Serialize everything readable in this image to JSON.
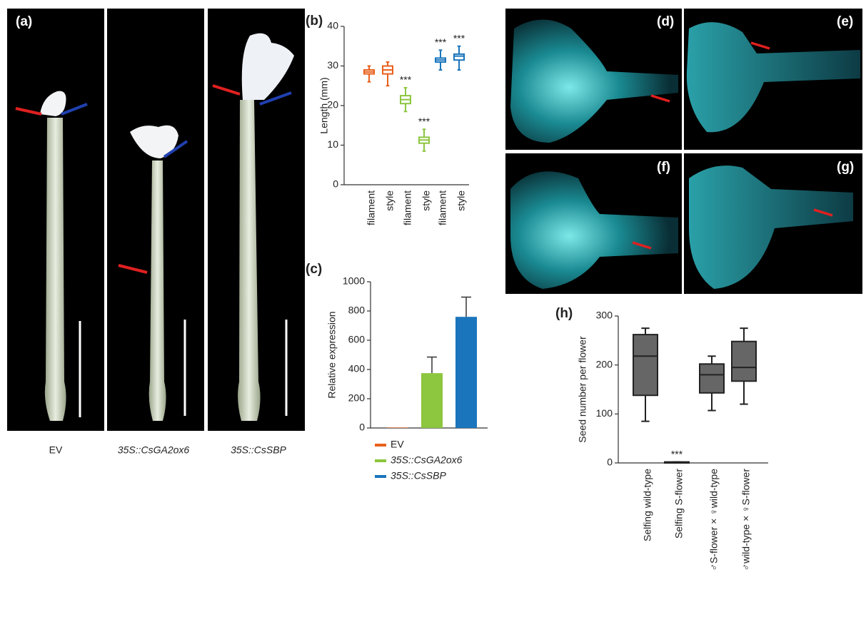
{
  "panel_labels": {
    "a": "(a)",
    "b": "(b)",
    "c": "(c)",
    "d": "(d)",
    "e": "(e)",
    "f": "(f)",
    "g": "(g)",
    "h": "(h)"
  },
  "photo_captions": [
    "EV",
    "35S::CsGA2ox6",
    "35S::CsSBP"
  ],
  "chart_data": [
    {
      "type": "box",
      "ylabel": "Length (mm)",
      "categories": [
        "filament",
        "style",
        "filament",
        "style",
        "filament",
        "style"
      ],
      "boxes": [
        {
          "min": 26,
          "q1": 28,
          "median": 28.5,
          "q3": 29,
          "max": 30,
          "color": "#e8601c"
        },
        {
          "min": 25,
          "q1": 28,
          "median": 29,
          "q3": 30,
          "max": 31,
          "color": "#e8601c"
        },
        {
          "min": 18.5,
          "q1": 20.5,
          "median": 21.5,
          "q3": 22.5,
          "max": 24.5,
          "color": "#8dc63f"
        },
        {
          "min": 8.5,
          "q1": 10.5,
          "median": 11.3,
          "q3": 12,
          "max": 14,
          "color": "#8dc63f"
        },
        {
          "min": 29,
          "q1": 31,
          "median": 31.5,
          "q3": 32,
          "max": 34,
          "color": "#1a75bc"
        },
        {
          "min": 29,
          "q1": 31.5,
          "median": 32.5,
          "q3": 33,
          "max": 35,
          "color": "#1a75bc"
        }
      ],
      "value_labels": [
        null,
        null,
        "***",
        "***",
        "***",
        "***"
      ],
      "ylim": [
        0,
        40
      ],
      "yticks": [
        0,
        10,
        20,
        30,
        40
      ]
    },
    {
      "type": "bar",
      "ylabel": "Relative expression",
      "categories": [
        "EV",
        "35S::CsGA2ox6",
        "35S::CsSBP"
      ],
      "values": [
        3,
        375,
        760
      ],
      "errors": [
        0,
        110,
        135
      ],
      "colors": [
        "#e8601c",
        "#8dc63f",
        "#1a75bc"
      ],
      "ylim": [
        0,
        1000
      ],
      "yticks": [
        0,
        200,
        400,
        600,
        800,
        1000
      ]
    },
    {
      "type": "box",
      "ylabel": "Seed number per flower",
      "categories": [
        "Selfing wild-type",
        "Selfing S-flower",
        "♂S-flower × ♀wild-type",
        "♂wild-type × ♀S-flower"
      ],
      "boxes": [
        {
          "min": 85,
          "q1": 138,
          "median": 218,
          "q3": 262,
          "max": 275,
          "color": "#666666"
        },
        {
          "min": 0,
          "q1": 0,
          "median": 1,
          "q3": 2,
          "max": 2,
          "color": "#666666"
        },
        {
          "min": 107,
          "q1": 143,
          "median": 180,
          "q3": 202,
          "max": 218,
          "color": "#666666"
        },
        {
          "min": 120,
          "q1": 167,
          "median": 195,
          "q3": 248,
          "max": 275,
          "color": "#666666"
        }
      ],
      "value_labels": [
        null,
        "***",
        null,
        null
      ],
      "ylim": [
        0,
        300
      ],
      "yticks": [
        0,
        100,
        200,
        300
      ]
    }
  ]
}
